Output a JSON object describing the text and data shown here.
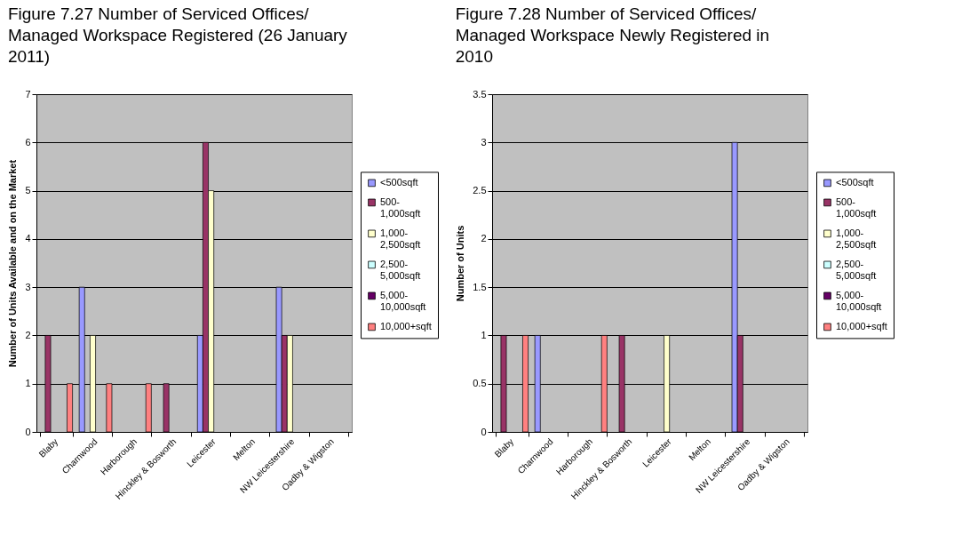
{
  "chart_data": [
    {
      "type": "bar",
      "title": "Figure 7.27 Number of Serviced Offices/ Managed Workspace Registered (26 January 2011)",
      "ylabel": "Number of Units Available and on the Market",
      "categories": [
        "Blaby",
        "Charnwood",
        "Harborough",
        "Hinckley & Bosworth",
        "Leicester",
        "Melton",
        "NW Leicestershire",
        "Oadby & Wigston"
      ],
      "series": [
        {
          "name": "<500sqft",
          "color": "#9999ff",
          "values": [
            null,
            3,
            null,
            null,
            2,
            null,
            3,
            null
          ]
        },
        {
          "name": "500-1,000sqft",
          "color": "#993366",
          "values": [
            2,
            null,
            null,
            1,
            6,
            null,
            2,
            null
          ]
        },
        {
          "name": "1,000-2,500sqft",
          "color": "#ffffcc",
          "values": [
            null,
            2,
            null,
            null,
            5,
            null,
            2,
            null
          ]
        },
        {
          "name": "2,500-5,000sqft",
          "color": "#ccffff",
          "values": [
            null,
            null,
            null,
            null,
            null,
            null,
            null,
            null
          ]
        },
        {
          "name": "5,000-10,000sqft",
          "color": "#660066",
          "values": [
            null,
            null,
            null,
            null,
            null,
            null,
            null,
            null
          ]
        },
        {
          "name": "10,000+sqft",
          "color": "#ff8080",
          "values": [
            1,
            1,
            1,
            null,
            null,
            null,
            null,
            null
          ]
        }
      ],
      "ylim": [
        0,
        7
      ],
      "yticks": [
        0,
        1,
        2,
        3,
        4,
        5,
        6,
        7
      ],
      "grid": "y",
      "legend": "right"
    },
    {
      "type": "bar",
      "title": "Figure 7.28 Number of Serviced Offices/ Managed Workspace Newly Registered in 2010",
      "ylabel": "Number of Units",
      "categories": [
        "Blaby",
        "Charnwood",
        "Harborough",
        "Hinckley & Bosworth",
        "Leicester",
        "Melton",
        "NW Leicestershire",
        "Oadby & Wigston"
      ],
      "series": [
        {
          "name": "<500sqft",
          "color": "#9999ff",
          "values": [
            null,
            1,
            null,
            null,
            null,
            null,
            3,
            null
          ]
        },
        {
          "name": "500-1,000sqft",
          "color": "#993366",
          "values": [
            1,
            null,
            null,
            1,
            null,
            null,
            1,
            null
          ]
        },
        {
          "name": "1,000-2,500sqft",
          "color": "#ffffcc",
          "values": [
            null,
            null,
            null,
            null,
            1,
            null,
            null,
            null
          ]
        },
        {
          "name": "2,500-5,000sqft",
          "color": "#ccffff",
          "values": [
            null,
            null,
            null,
            null,
            null,
            null,
            null,
            null
          ]
        },
        {
          "name": "5,000-10,000sqft",
          "color": "#660066",
          "values": [
            null,
            null,
            null,
            null,
            null,
            null,
            null,
            null
          ]
        },
        {
          "name": "10,000+sqft",
          "color": "#ff8080",
          "values": [
            1,
            null,
            1,
            null,
            null,
            null,
            null,
            null
          ]
        }
      ],
      "ylim": [
        0,
        3.5
      ],
      "yticks": [
        0,
        0.5,
        1,
        1.5,
        2,
        2.5,
        3,
        3.5
      ],
      "grid": "y",
      "legend": "right"
    }
  ]
}
